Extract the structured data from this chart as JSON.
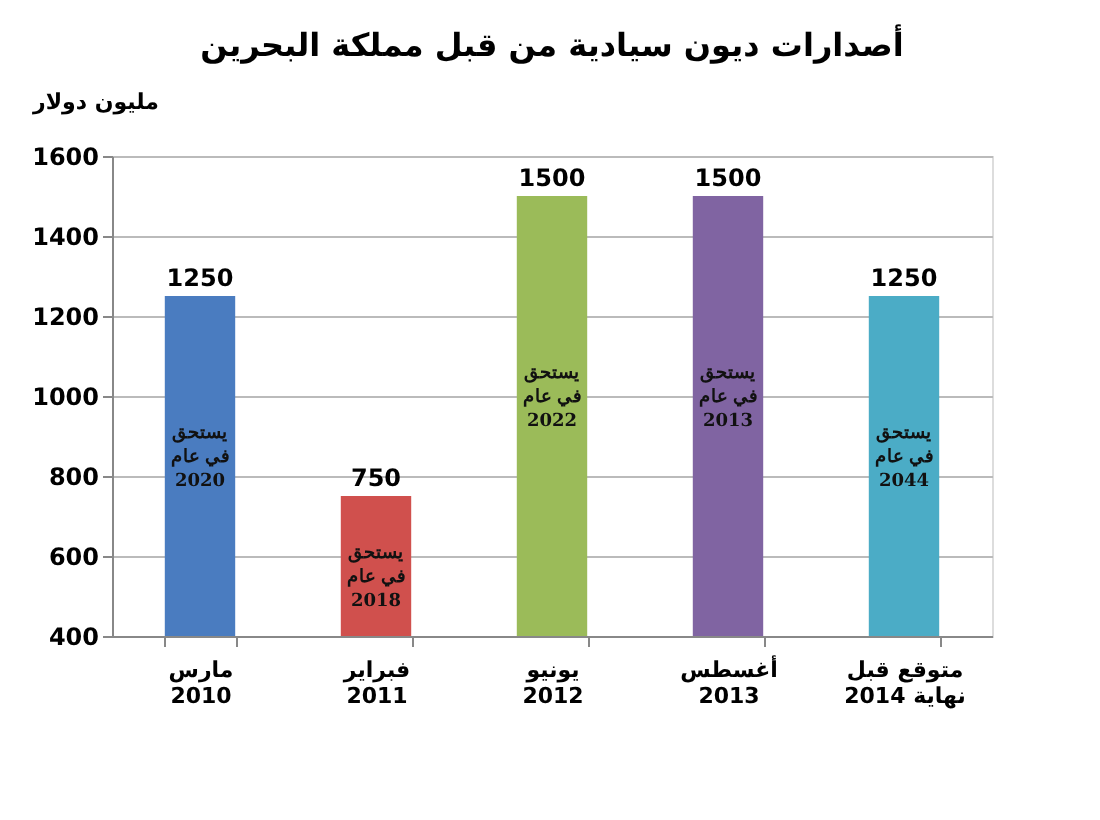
{
  "chart_data": {
    "type": "bar",
    "title": "أصدارات ديون سيادية من قبل مملكة البحرين",
    "ylabel": "مليون دولار",
    "categories": [
      "مارس\n2010",
      "فبراير\n2011",
      "يونيو\n2012",
      "أغسطس\n2013",
      "متوقع قبل\nنهاية 2014"
    ],
    "values": [
      1250,
      750,
      1500,
      1500,
      1250
    ],
    "colors": [
      "#4a7cc0",
      "#d0504d",
      "#9bbb59",
      "#8064a2",
      "#4bacc6"
    ],
    "data_labels": true,
    "ylim": [
      400,
      1600
    ],
    "yticks": [
      400,
      600,
      800,
      1000,
      1200,
      1400,
      1600
    ],
    "grid": "y",
    "annotations": [
      "يستحق\nفي عام\n2020",
      "يستحق\nفي عام\n2018",
      "يستحق\nفي عام\n2022",
      "يستحق\nفي عام\n2013",
      "يستحق\nفي عام\n2044"
    ]
  }
}
